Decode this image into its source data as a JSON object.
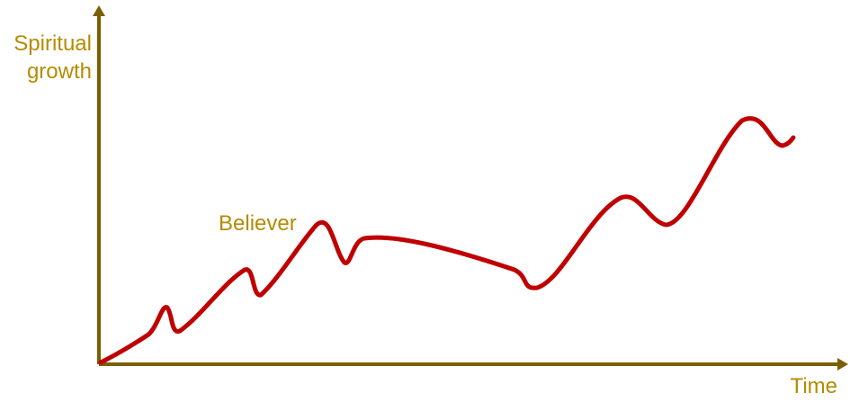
{
  "diagram": {
    "y_axis_label_line1": "Spiritual",
    "y_axis_label_line2": "growth",
    "x_axis_label": "Time",
    "curve_label": "Believer",
    "colors": {
      "axis": "#7a5f00",
      "label_text": "#b58b00",
      "curve": "#c00000"
    }
  }
}
